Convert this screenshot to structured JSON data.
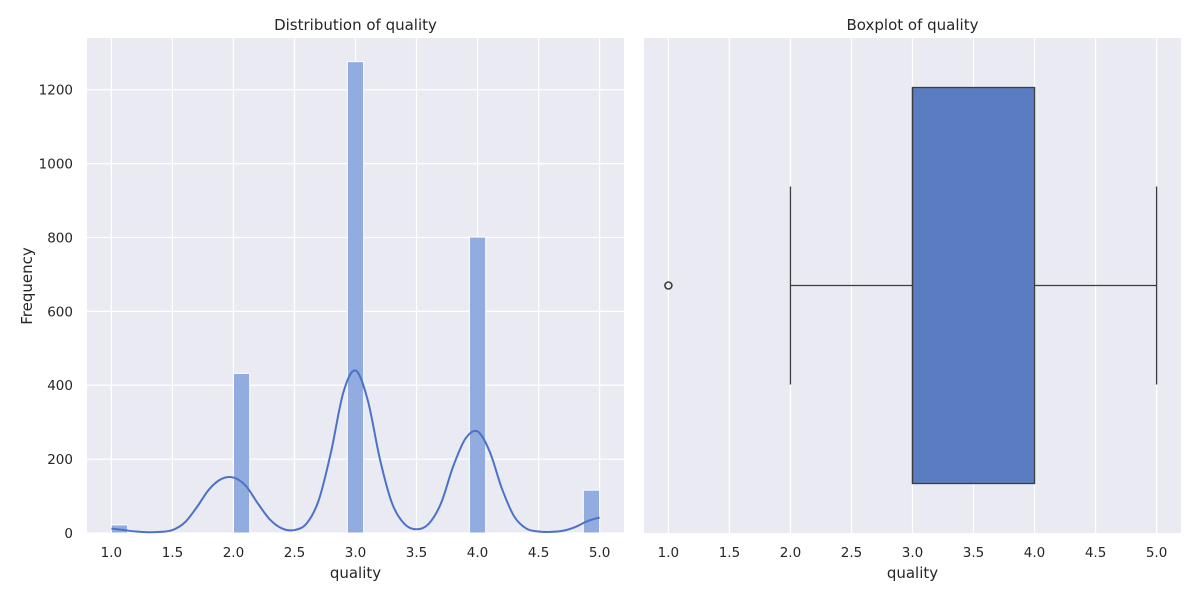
{
  "colors": {
    "hist_fill": "#92acdf",
    "hist_edge": "#ffffff",
    "kde_line": "#4c72c8",
    "box_fill": "#5a7dc1",
    "box_line": "#3d3d3d",
    "panel_bg": "#eaeaf2"
  },
  "chart_data": [
    {
      "type": "bar",
      "subtype": "histogram-with-kde",
      "title": "Distribution of quality",
      "xlabel": "quality",
      "ylabel": "Frequency",
      "xlim": [
        0.8,
        5.2
      ],
      "ylim": [
        0,
        1340
      ],
      "x_ticks": [
        1.0,
        1.5,
        2.0,
        2.5,
        3.0,
        3.5,
        4.0,
        4.5,
        5.0
      ],
      "x_tick_labels": [
        "1.0",
        "1.5",
        "2.0",
        "2.5",
        "3.0",
        "3.5",
        "4.0",
        "4.5",
        "5.0"
      ],
      "y_ticks": [
        0,
        200,
        400,
        600,
        800,
        1000,
        1200
      ],
      "y_tick_labels": [
        "0",
        "200",
        "400",
        "600",
        "800",
        "1000",
        "1200"
      ],
      "grid": true,
      "bins": [
        {
          "x0": 1.0,
          "x1": 1.1333,
          "count": 22
        },
        {
          "x0": 2.0,
          "x1": 2.1333,
          "count": 432
        },
        {
          "x0": 2.9333,
          "x1": 3.0667,
          "count": 1276
        },
        {
          "x0": 3.9333,
          "x1": 4.0667,
          "count": 801
        },
        {
          "x0": 4.8667,
          "x1": 5.0,
          "count": 116
        }
      ],
      "kde": {
        "x": [
          1.0,
          1.1,
          1.2,
          1.3,
          1.4,
          1.5,
          1.6,
          1.7,
          1.8,
          1.9,
          2.0,
          2.1,
          2.2,
          2.3,
          2.4,
          2.5,
          2.6,
          2.7,
          2.8,
          2.9,
          3.0,
          3.1,
          3.2,
          3.3,
          3.4,
          3.5,
          3.6,
          3.7,
          3.8,
          3.9,
          4.0,
          4.1,
          4.2,
          4.3,
          4.4,
          4.5,
          4.6,
          4.7,
          4.8,
          4.9,
          5.0
        ],
        "y": [
          12,
          8,
          4,
          2,
          3,
          8,
          28,
          70,
          118,
          146,
          150,
          128,
          80,
          36,
          12,
          8,
          26,
          90,
          220,
          380,
          440,
          360,
          200,
          80,
          25,
          10,
          25,
          80,
          180,
          255,
          275,
          220,
          120,
          45,
          12,
          4,
          3,
          6,
          16,
          32,
          42
        ]
      }
    },
    {
      "type": "box",
      "title": "Boxplot of quality",
      "xlabel": "quality",
      "xlim": [
        0.8,
        5.2
      ],
      "x_ticks": [
        1.0,
        1.5,
        2.0,
        2.5,
        3.0,
        3.5,
        4.0,
        4.5,
        5.0
      ],
      "x_tick_labels": [
        "1.0",
        "1.5",
        "2.0",
        "2.5",
        "3.0",
        "3.5",
        "4.0",
        "4.5",
        "5.0"
      ],
      "grid": true,
      "whisker_low": 2.0,
      "q1": 3.0,
      "median": 3.0,
      "q3": 4.0,
      "whisker_high": 5.0,
      "outliers": [
        1.0
      ]
    }
  ]
}
